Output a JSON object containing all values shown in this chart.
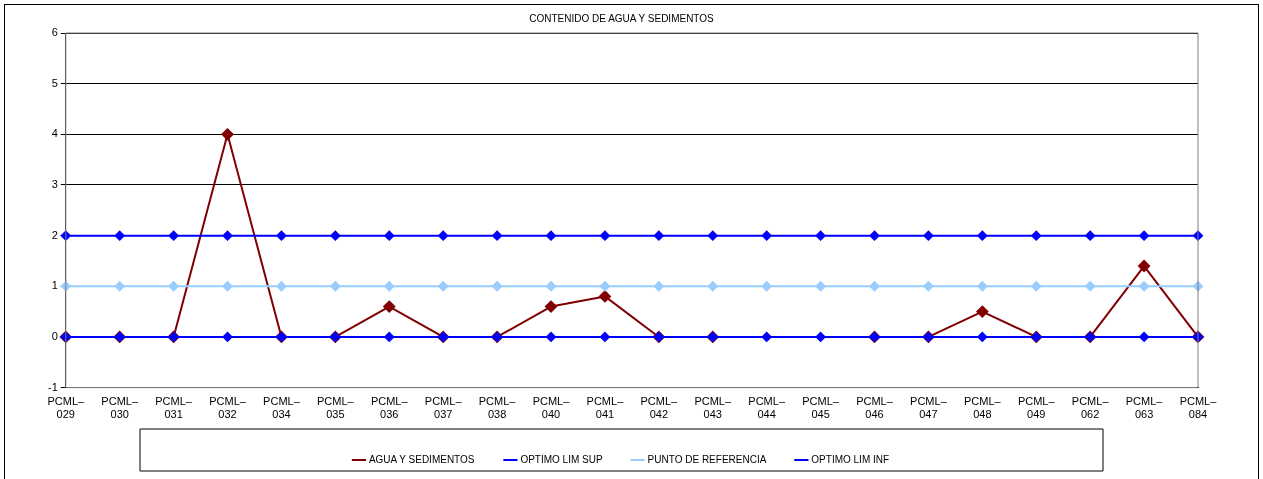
{
  "chart_data": {
    "type": "line",
    "title": "CONTENIDO DE AGUA Y SEDIMENTOS",
    "categories": [
      "PCML– 029",
      "PCML– 030",
      "PCML– 031",
      "PCML– 032",
      "PCML– 034",
      "PCML– 035",
      "PCML– 036",
      "PCML– 037",
      "PCML– 038",
      "PCML– 040",
      "PCML– 041",
      "PCML– 042",
      "PCML– 043",
      "PCML– 044",
      "PCML– 045",
      "PCML– 046",
      "PCML– 047",
      "PCML– 048",
      "PCML– 049",
      "PCML– 062",
      "PCML– 063",
      "PCML– 084"
    ],
    "series": [
      {
        "name": "AGUA Y SEDIMENTOS",
        "color": "#800000",
        "values": [
          0,
          0,
          0,
          4,
          0,
          0,
          0.6,
          0,
          0,
          0.6,
          0.8,
          0,
          0,
          null,
          null,
          0,
          0,
          0.5,
          0,
          0,
          1.4,
          0
        ]
      },
      {
        "name": "OPTIMO LIM SUP",
        "color": "#0000ff",
        "values": [
          2,
          2,
          2,
          2,
          2,
          2,
          2,
          2,
          2,
          2,
          2,
          2,
          2,
          2,
          2,
          2,
          2,
          2,
          2,
          2,
          2,
          2
        ]
      },
      {
        "name": "PUNTO DE REFERENCIA",
        "color": "#99ccff",
        "values": [
          1,
          1,
          1,
          1,
          1,
          1,
          1,
          1,
          1,
          1,
          1,
          1,
          1,
          1,
          1,
          1,
          1,
          1,
          1,
          1,
          1,
          1
        ]
      },
      {
        "name": "OPTIMO LIM INF",
        "color": "#0000ff",
        "values": [
          0,
          0,
          0,
          0,
          0,
          0,
          0,
          0,
          0,
          0,
          0,
          0,
          0,
          0,
          0,
          0,
          0,
          0,
          0,
          0,
          0,
          0
        ]
      }
    ],
    "ylim": [
      -1,
      6
    ],
    "yticks": [
      -1,
      0,
      1,
      2,
      3,
      4,
      5,
      6
    ],
    "grid": "y",
    "legend": "bottom",
    "marker": "diamond",
    "line_style": "solid"
  }
}
